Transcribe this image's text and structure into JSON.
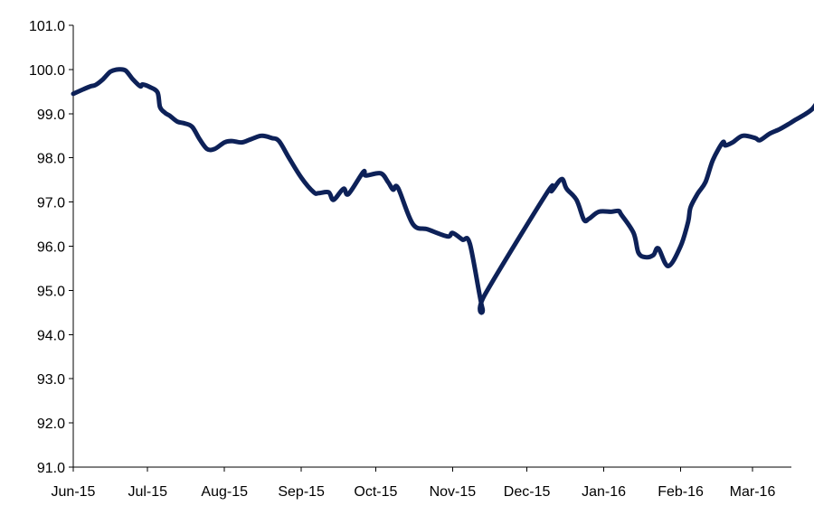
{
  "chart_data": {
    "type": "line",
    "title": "",
    "xlabel": "",
    "ylabel": "",
    "ylim": [
      91.0,
      101.0
    ],
    "y_ticks": [
      "91.0",
      "92.0",
      "93.0",
      "94.0",
      "95.0",
      "96.0",
      "97.0",
      "98.0",
      "99.0",
      "100.0",
      "101.0"
    ],
    "x_ticks": [
      "Jun-15",
      "Jul-15",
      "Aug-15",
      "Sep-15",
      "Oct-15",
      "Nov-15",
      "Dec-15",
      "Jan-16",
      "Feb-16",
      "Mar-16"
    ],
    "grid": false,
    "legend": "none",
    "line_color": "#0d2158",
    "series": [
      {
        "values": [
          [
            "2015-06-01",
            99.45
          ],
          [
            "2015-06-05",
            99.55
          ],
          [
            "2015-06-08",
            99.62
          ],
          [
            "2015-06-10",
            99.65
          ],
          [
            "2015-06-13",
            99.78
          ],
          [
            "2015-06-16",
            99.95
          ],
          [
            "2015-06-19",
            100.0
          ],
          [
            "2015-06-22",
            99.98
          ],
          [
            "2015-06-25",
            99.78
          ],
          [
            "2015-06-28",
            99.62
          ],
          [
            "2015-06-29",
            99.66
          ],
          [
            "2015-07-02",
            99.6
          ],
          [
            "2015-07-05",
            99.48
          ],
          [
            "2015-07-06",
            99.15
          ],
          [
            "2015-07-08",
            99.02
          ],
          [
            "2015-07-10",
            98.95
          ],
          [
            "2015-07-13",
            98.82
          ],
          [
            "2015-07-16",
            98.78
          ],
          [
            "2015-07-19",
            98.7
          ],
          [
            "2015-07-22",
            98.42
          ],
          [
            "2015-07-25",
            98.2
          ],
          [
            "2015-07-28",
            98.2
          ],
          [
            "2015-08-01",
            98.35
          ],
          [
            "2015-08-04",
            98.38
          ],
          [
            "2015-08-08",
            98.35
          ],
          [
            "2015-08-12",
            98.43
          ],
          [
            "2015-08-16",
            98.5
          ],
          [
            "2015-08-20",
            98.45
          ],
          [
            "2015-08-23",
            98.38
          ],
          [
            "2015-08-27",
            98.0
          ],
          [
            "2015-09-01",
            97.55
          ],
          [
            "2015-09-06",
            97.22
          ],
          [
            "2015-09-08",
            97.2
          ],
          [
            "2015-09-12",
            97.22
          ],
          [
            "2015-09-14",
            97.05
          ],
          [
            "2015-09-18",
            97.3
          ],
          [
            "2015-09-20",
            97.18
          ],
          [
            "2015-09-26",
            97.68
          ],
          [
            "2015-09-27",
            97.6
          ],
          [
            "2015-10-03",
            97.65
          ],
          [
            "2015-10-06",
            97.45
          ],
          [
            "2015-10-08",
            97.28
          ],
          [
            "2015-10-10",
            97.32
          ],
          [
            "2015-10-16",
            96.5
          ],
          [
            "2015-10-22",
            96.38
          ],
          [
            "2015-10-30",
            96.22
          ],
          [
            "2015-11-01",
            96.3
          ],
          [
            "2015-11-05",
            96.15
          ],
          [
            "2015-11-08",
            96.05
          ],
          [
            "2015-11-13",
            94.6
          ],
          [
            "2015-11-14",
            94.9
          ],
          [
            "2015-12-09",
            97.2
          ],
          [
            "2015-12-11",
            97.25
          ],
          [
            "2015-12-15",
            97.52
          ],
          [
            "2015-12-17",
            97.3
          ],
          [
            "2015-12-21",
            97.05
          ],
          [
            "2015-12-24",
            96.6
          ],
          [
            "2015-12-26",
            96.62
          ],
          [
            "2015-12-30",
            96.78
          ],
          [
            "2016-01-04",
            96.78
          ],
          [
            "2016-01-07",
            96.8
          ],
          [
            "2016-01-08",
            96.72
          ],
          [
            "2016-01-13",
            96.3
          ],
          [
            "2016-01-15",
            95.85
          ],
          [
            "2016-01-18",
            95.75
          ],
          [
            "2016-01-21",
            95.8
          ],
          [
            "2016-01-23",
            95.95
          ],
          [
            "2016-01-27",
            95.55
          ],
          [
            "2016-02-01",
            96.0
          ],
          [
            "2016-02-04",
            96.55
          ],
          [
            "2016-02-05",
            96.88
          ],
          [
            "2016-02-08",
            97.2
          ],
          [
            "2016-02-11",
            97.45
          ],
          [
            "2016-02-14",
            97.95
          ],
          [
            "2016-02-18",
            98.35
          ],
          [
            "2016-02-19",
            98.28
          ],
          [
            "2016-02-22",
            98.35
          ],
          [
            "2016-02-26",
            98.5
          ],
          [
            "2016-03-02",
            98.45
          ],
          [
            "2016-03-04",
            98.4
          ],
          [
            "2016-03-08",
            98.55
          ],
          [
            "2016-03-12",
            98.65
          ],
          [
            "2016-03-16",
            98.78
          ],
          [
            "2016-03-18",
            98.85
          ],
          [
            "2016-03-22",
            98.98
          ],
          [
            "2016-03-25",
            99.1
          ],
          [
            "2016-03-27",
            99.25
          ]
        ]
      }
    ]
  }
}
